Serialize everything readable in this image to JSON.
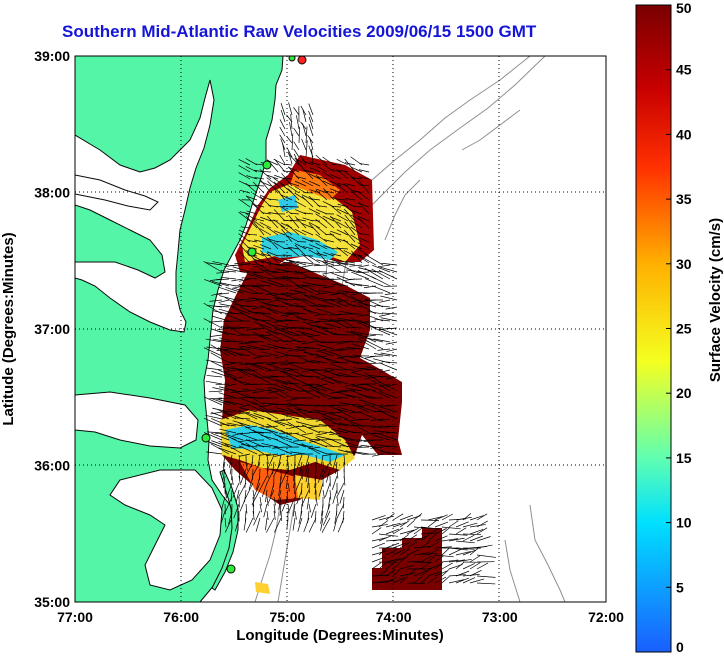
{
  "title": "Southern Mid-Atlantic Raw Velocities 2009/06/15 1500 GMT",
  "xlabel": "Longitude (Degrees:Minutes)",
  "ylabel": "Latitude (Degrees:Minutes)",
  "x_ticks": [
    "77:00",
    "76:00",
    "75:00",
    "74:00",
    "73:00",
    "72:00"
  ],
  "y_ticks": [
    "39:00",
    "38:00",
    "37:00",
    "36:00",
    "35:00"
  ],
  "colorbar": {
    "label": "Surface Velocity (cm/s)",
    "ticks": [
      "0",
      "5",
      "10",
      "15",
      "20",
      "25",
      "30",
      "35",
      "40",
      "45",
      "50"
    ],
    "range": [
      0,
      50
    ],
    "units": "cm/s"
  },
  "map_extent": {
    "lon": [
      -77,
      -72
    ],
    "lat": [
      35,
      39
    ]
  },
  "colors": {
    "land": "#55f5a8",
    "ocean": "#ffffff",
    "title": "#1515d8",
    "bathymetry": "#8f8f8f"
  }
}
